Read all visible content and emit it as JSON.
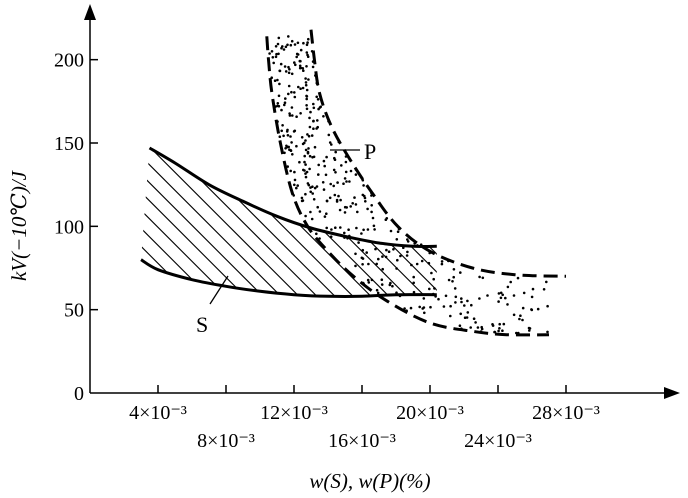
{
  "chart_data": {
    "type": "area",
    "xlabel": "w(S), w(P)(%)",
    "ylabel": "kV(−10℃)/J",
    "x_unit_scale": "×10⁻³",
    "xlim": [
      0,
      34
    ],
    "ylim": [
      0,
      225
    ],
    "x_ticks": [
      {
        "value": 4,
        "label": "4×10⁻³",
        "row": 1
      },
      {
        "value": 8,
        "label": "8×10⁻³",
        "row": 2
      },
      {
        "value": 12,
        "label": "12×10⁻³",
        "row": 1
      },
      {
        "value": 16,
        "label": "16×10⁻³",
        "row": 2
      },
      {
        "value": 20,
        "label": "20×10⁻³",
        "row": 1
      },
      {
        "value": 24,
        "label": "24×10⁻³",
        "row": 2
      },
      {
        "value": 28,
        "label": "28×10⁻³",
        "row": 1
      }
    ],
    "y_ticks": [
      {
        "value": 0,
        "label": "0"
      },
      {
        "value": 50,
        "label": "50"
      },
      {
        "value": 100,
        "label": "100"
      },
      {
        "value": 150,
        "label": "150"
      },
      {
        "value": 200,
        "label": "200"
      }
    ],
    "grid": false,
    "series": [
      {
        "name": "S",
        "style": "solid-hatched",
        "upper": [
          [
            3.5,
            147
          ],
          [
            5,
            138
          ],
          [
            7,
            125
          ],
          [
            9,
            115
          ],
          [
            11,
            106
          ],
          [
            13,
            99
          ],
          [
            15,
            94
          ],
          [
            17,
            90
          ],
          [
            19,
            88
          ],
          [
            20.4,
            88
          ]
        ],
        "lower": [
          [
            3,
            80
          ],
          [
            4,
            74
          ],
          [
            6,
            68
          ],
          [
            8,
            64
          ],
          [
            10,
            61
          ],
          [
            12,
            59
          ],
          [
            14,
            58
          ],
          [
            16,
            58
          ],
          [
            18,
            59
          ],
          [
            20.4,
            59
          ]
        ]
      },
      {
        "name": "P",
        "style": "dashed-dotted",
        "left": [
          [
            10.4,
            214
          ],
          [
            10.5,
            200
          ],
          [
            10.7,
            180
          ],
          [
            11.2,
            150
          ],
          [
            11.9,
            120
          ],
          [
            12.8,
            100
          ],
          [
            14,
            85
          ],
          [
            15.5,
            70
          ],
          [
            17.5,
            55
          ],
          [
            20,
            42
          ],
          [
            22.5,
            37
          ],
          [
            24.5,
            35
          ],
          [
            27,
            35
          ]
        ],
        "right": [
          [
            13,
            218
          ],
          [
            13.2,
            200
          ],
          [
            13.5,
            180
          ],
          [
            14.2,
            160
          ],
          [
            15.3,
            140
          ],
          [
            16.6,
            120
          ],
          [
            18.1,
            100
          ],
          [
            20,
            85
          ],
          [
            22.5,
            75
          ],
          [
            25,
            71
          ],
          [
            28,
            70
          ]
        ]
      }
    ]
  }
}
